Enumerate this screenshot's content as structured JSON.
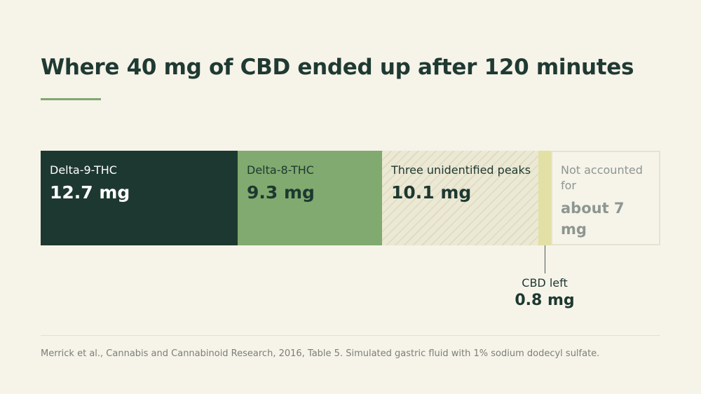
{
  "chart_data": {
    "type": "bar",
    "orientation": "horizontal-stacked",
    "title": "Where 40 mg of CBD ended up after 120 minutes",
    "total_mg": 40,
    "unit": "mg",
    "segments": [
      {
        "label": "Delta-9-THC",
        "value": 12.7,
        "value_label": "12.7 mg",
        "color": "#1d3830",
        "style": "solid"
      },
      {
        "label": "Delta-8-THC",
        "value": 9.3,
        "value_label": "9.3 mg",
        "color": "#80aa6f",
        "style": "solid"
      },
      {
        "label": "Three unidentified peaks",
        "value": 10.1,
        "value_label": "10.1 mg",
        "color": "#ebe8d4",
        "style": "hatched"
      },
      {
        "label": "CBD left",
        "value": 0.8,
        "value_label": "0.8 mg",
        "color": "#e2e0a5",
        "style": "solid",
        "callout": true
      },
      {
        "label": "Not accounted for",
        "value": 7.1,
        "value_label": "about 7 mg",
        "color": "#f6f3e9",
        "style": "outline"
      }
    ],
    "source": "Merrick et al., Cannabis and Cannabinoid Research, 2016, Table 5. Simulated gastric fluid with 1% sodium dodecyl sulfate."
  }
}
